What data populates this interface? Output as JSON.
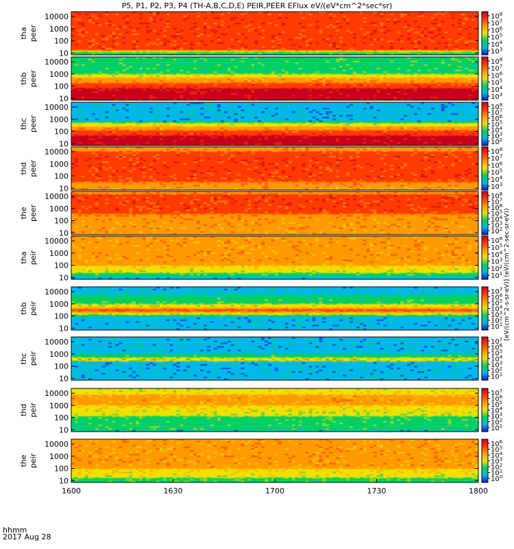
{
  "title": "P5, P1, P2, P3, P4 (TH-A,B,C,D,E) PEIR,PEER EFlux eV/(eV*cm^2*sec*sr)",
  "footer": {
    "time_label": "hhmm",
    "date_label": "2017 Aug 28"
  },
  "colorbar_unit_label": "[eV/(cm^2-s-sr-eV)] (eV/(cm^2-sec-sr-eV))",
  "colors": {
    "max": "#c8001e",
    "high": "#ff3b00",
    "midhigh": "#ff9a00",
    "mid": "#f0e000",
    "midlow": "#00d060",
    "low": "#00b8e8",
    "min": "#1018d0",
    "floor": "#ffffff"
  },
  "chart_data": {
    "type": "heatmap",
    "x_tick_labels": [
      "1600",
      "1630",
      "1700",
      "1730",
      "1800"
    ],
    "x_range": [
      "16:00",
      "18:00"
    ],
    "y_scale": "log",
    "y_tick_labels": [
      "10",
      "100",
      "1000",
      "10000"
    ],
    "y_range_eV": [
      7,
      25000
    ],
    "panels": [
      {
        "probe": "tha",
        "species": "peer",
        "cbar_ticks": [
          "10^8",
          "10^7",
          "10^6",
          "10^5",
          "10^4",
          "10^3"
        ],
        "profile": [
          {
            "e": 10,
            "level": 2
          },
          {
            "e": 20,
            "level": 5
          },
          {
            "e": 500,
            "level": 5
          },
          {
            "e": 3000,
            "level": 5
          },
          {
            "e": 10000,
            "level": 5
          },
          {
            "e": 25000,
            "level": 5
          }
        ]
      },
      {
        "probe": "thb",
        "species": "peer",
        "cbar_ticks": [
          "10^8",
          "10^7",
          "10^6",
          "10^5",
          "10^4",
          "10^3"
        ],
        "profile": [
          {
            "e": 10,
            "level": 6
          },
          {
            "e": 40,
            "level": 6
          },
          {
            "e": 120,
            "level": 5
          },
          {
            "e": 300,
            "level": 4
          },
          {
            "e": 700,
            "level": 3
          },
          {
            "e": 1500,
            "level": 2
          },
          {
            "e": 25000,
            "level": 2
          }
        ]
      },
      {
        "probe": "thc",
        "species": "peer",
        "cbar_ticks": [
          "10^8",
          "10^7",
          "10^6",
          "10^5",
          "10^4",
          "10^3",
          "10^2"
        ],
        "profile": [
          {
            "e": 10,
            "level": 6
          },
          {
            "e": 25,
            "level": 6
          },
          {
            "e": 80,
            "level": 5
          },
          {
            "e": 200,
            "level": 4
          },
          {
            "e": 400,
            "level": 3
          },
          {
            "e": 700,
            "level": 1
          },
          {
            "e": 25000,
            "level": 1
          }
        ]
      },
      {
        "probe": "thd",
        "species": "peer",
        "cbar_ticks": [
          "10^8",
          "10^7",
          "10^6",
          "10^5",
          "10^4",
          "10^3"
        ],
        "profile": [
          {
            "e": 10,
            "level": 4
          },
          {
            "e": 100,
            "level": 5
          },
          {
            "e": 1000,
            "level": 5
          },
          {
            "e": 5000,
            "level": 5
          },
          {
            "e": 25000,
            "level": 4
          }
        ]
      },
      {
        "probe": "the",
        "species": "peer",
        "cbar_ticks": [
          "10^8",
          "10^7",
          "10^6",
          "10^5",
          "10^4",
          "10^3",
          "10^2"
        ],
        "profile": [
          {
            "e": 10,
            "level": 4
          },
          {
            "e": 100,
            "level": 4
          },
          {
            "e": 1000,
            "level": 5
          },
          {
            "e": 10000,
            "level": 5
          },
          {
            "e": 25000,
            "level": 4
          }
        ]
      },
      {
        "probe": "tha",
        "species": "peir",
        "cbar_ticks": [
          "10^6",
          "10^5",
          "10^4",
          "10^3",
          "10^2",
          "10^1"
        ],
        "profile": [
          {
            "e": 8,
            "level": 1
          },
          {
            "e": 15,
            "level": 2
          },
          {
            "e": 40,
            "level": 3
          },
          {
            "e": 200,
            "level": 4
          },
          {
            "e": 2000,
            "level": 4
          },
          {
            "e": 25000,
            "level": 4
          }
        ]
      },
      {
        "probe": "thb",
        "species": "peir",
        "cbar_ticks": [
          "10^7",
          "10^6",
          "10^5",
          "10^4",
          "10^3",
          "10^2",
          "10^1"
        ],
        "profile": [
          {
            "e": 10,
            "level": 1
          },
          {
            "e": 80,
            "level": 1
          },
          {
            "e": 150,
            "level": 3
          },
          {
            "e": 300,
            "level": 5
          },
          {
            "e": 600,
            "level": 3
          },
          {
            "e": 1500,
            "level": 2
          },
          {
            "e": 25000,
            "level": 1
          }
        ]
      },
      {
        "probe": "thc",
        "species": "peir",
        "cbar_ticks": [
          "10^7",
          "10^6",
          "10^5",
          "10^4",
          "10^3",
          "10^2",
          "10^1"
        ],
        "profile": [
          {
            "e": 10,
            "level": 1
          },
          {
            "e": 200,
            "level": 1
          },
          {
            "e": 350,
            "level": 4
          },
          {
            "e": 600,
            "level": 2
          },
          {
            "e": 2000,
            "level": 1
          },
          {
            "e": 25000,
            "level": 1
          }
        ]
      },
      {
        "probe": "thd",
        "species": "peir",
        "cbar_ticks": [
          "10^7",
          "10^6",
          "10^5",
          "10^4",
          "10^3",
          "10^2",
          "10^1"
        ],
        "profile": [
          {
            "e": 8,
            "level": 1
          },
          {
            "e": 12,
            "level": 2
          },
          {
            "e": 50,
            "level": 2
          },
          {
            "e": 300,
            "level": 3
          },
          {
            "e": 3000,
            "level": 4
          },
          {
            "e": 25000,
            "level": 3
          }
        ]
      },
      {
        "probe": "the",
        "species": "peir",
        "cbar_ticks": [
          "10^6",
          "10^5",
          "10^4",
          "10^3",
          "10^2",
          "10^1",
          "10^0"
        ],
        "profile": [
          {
            "e": 8,
            "level": 2
          },
          {
            "e": 30,
            "level": 3
          },
          {
            "e": 200,
            "level": 4
          },
          {
            "e": 2000,
            "level": 4
          },
          {
            "e": 25000,
            "level": 4
          }
        ]
      }
    ]
  }
}
